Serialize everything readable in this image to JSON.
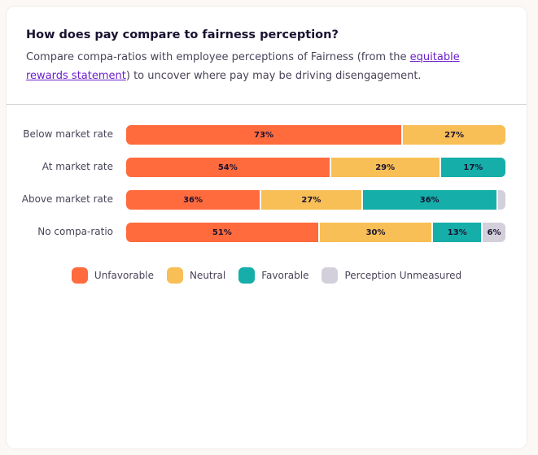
{
  "card": {
    "title": "How does pay compare to fairness perception?",
    "desc_before": "Compare compa-ratios with employee perceptions of Fairness (from the ",
    "desc_link": "equitable rewards statement",
    "desc_after": ") to uncover where pay may be driving disengagement."
  },
  "colors": {
    "Unfavorable": "#ff6b3d",
    "Neutral": "#f8bf56",
    "Favorable": "#15aea9",
    "Perception Unmeasured": "#d3d0db"
  },
  "chart_data": {
    "type": "bar",
    "orientation": "horizontal",
    "stacked": true,
    "categories": [
      "Below market rate",
      "At market rate",
      "Above market rate",
      "No compa-ratio"
    ],
    "series": [
      {
        "name": "Unfavorable",
        "values": [
          73,
          54,
          36,
          51
        ]
      },
      {
        "name": "Neutral",
        "values": [
          27,
          29,
          27,
          30
        ]
      },
      {
        "name": "Favorable",
        "values": [
          0,
          17,
          36,
          13
        ]
      },
      {
        "name": "Perception Unmeasured",
        "values": [
          0,
          0,
          2,
          6
        ]
      }
    ],
    "data_labels": [
      [
        "73%",
        "27%",
        "",
        ""
      ],
      [
        "54%",
        "29%",
        "17%",
        ""
      ],
      [
        "36%",
        "27%",
        "36%",
        ""
      ],
      [
        "51%",
        "30%",
        "13%",
        "6%"
      ]
    ],
    "xlim": [
      0,
      100
    ],
    "legend_position": "bottom",
    "grid": false
  }
}
